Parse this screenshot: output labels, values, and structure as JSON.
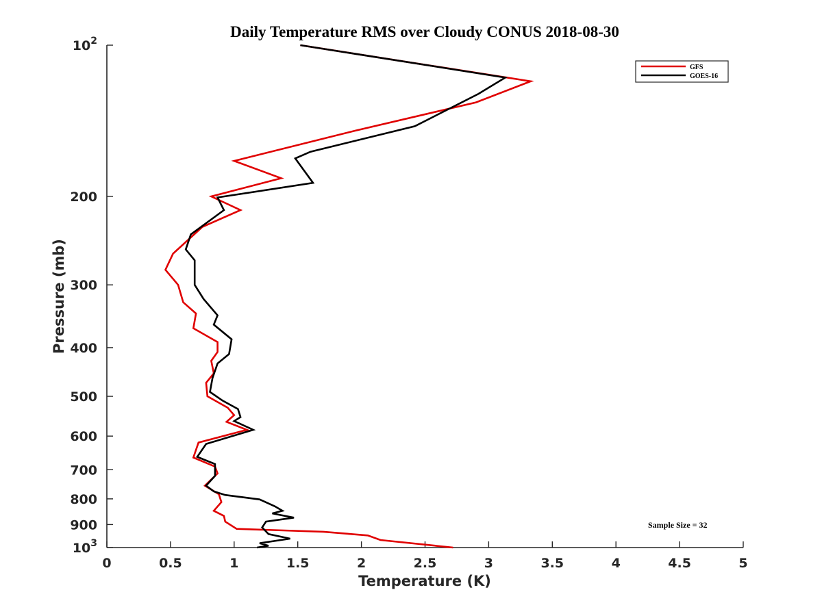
{
  "chart_data": {
    "type": "line",
    "title": "Daily Temperature RMS over Cloudy CONUS 2018-08-30",
    "xlabel": "Temperature (K)",
    "ylabel": "Pressure (mb)",
    "xlim": [
      0,
      5
    ],
    "ylim": [
      100,
      1000
    ],
    "y_scale": "log",
    "y_reversed": true,
    "grid": false,
    "legend_position": "top-right",
    "x_ticks": [
      0,
      0.5,
      1,
      1.5,
      2,
      2.5,
      3,
      3.5,
      4,
      4.5,
      5
    ],
    "x_tick_labels": [
      "0",
      "0.5",
      "1",
      "1.5",
      "2",
      "2.5",
      "3",
      "3.5",
      "4",
      "4.5",
      "5"
    ],
    "y_ticks": [
      100,
      200,
      300,
      400,
      500,
      600,
      700,
      800,
      900,
      1000
    ],
    "y_tick_labels": [
      {
        "base": "10",
        "exp": "2"
      },
      {
        "base": "200",
        "exp": ""
      },
      {
        "base": "300",
        "exp": ""
      },
      {
        "base": "400",
        "exp": ""
      },
      {
        "base": "500",
        "exp": ""
      },
      {
        "base": "600",
        "exp": ""
      },
      {
        "base": "700",
        "exp": ""
      },
      {
        "base": "800",
        "exp": ""
      },
      {
        "base": "900",
        "exp": ""
      },
      {
        "base": "10",
        "exp": "3"
      }
    ],
    "annotation": "Sample Size = 32",
    "series": [
      {
        "name": "GFS",
        "color": "#e00000",
        "points": [
          [
            1.52,
            100
          ],
          [
            3.33,
            118
          ],
          [
            2.9,
            130
          ],
          [
            1.95,
            148
          ],
          [
            1.0,
            170
          ],
          [
            1.37,
            184
          ],
          [
            0.82,
            200
          ],
          [
            1.05,
            213
          ],
          [
            0.75,
            230
          ],
          [
            0.52,
            260
          ],
          [
            0.46,
            280
          ],
          [
            0.56,
            300
          ],
          [
            0.6,
            325
          ],
          [
            0.7,
            342
          ],
          [
            0.68,
            366
          ],
          [
            0.87,
            390
          ],
          [
            0.87,
            408
          ],
          [
            0.82,
            425
          ],
          [
            0.84,
            450
          ],
          [
            0.78,
            470
          ],
          [
            0.79,
            500
          ],
          [
            0.95,
            527
          ],
          [
            1.0,
            545
          ],
          [
            0.94,
            562
          ],
          [
            1.1,
            583
          ],
          [
            0.72,
            618
          ],
          [
            0.68,
            662
          ],
          [
            0.85,
            690
          ],
          [
            0.87,
            712
          ],
          [
            0.77,
            753
          ],
          [
            0.88,
            783
          ],
          [
            0.9,
            812
          ],
          [
            0.84,
            845
          ],
          [
            0.92,
            865
          ],
          [
            0.93,
            888
          ],
          [
            1.02,
            918
          ],
          [
            1.7,
            930
          ],
          [
            2.05,
            946
          ],
          [
            2.15,
            966
          ],
          [
            2.72,
            1000
          ]
        ]
      },
      {
        "name": "GOES-16",
        "color": "#000000",
        "points": [
          [
            1.52,
            100
          ],
          [
            3.13,
            116
          ],
          [
            2.92,
            125
          ],
          [
            2.42,
            145
          ],
          [
            1.6,
            163
          ],
          [
            1.48,
            168
          ],
          [
            1.62,
            188
          ],
          [
            0.87,
            201
          ],
          [
            0.92,
            213
          ],
          [
            0.66,
            238
          ],
          [
            0.62,
            255
          ],
          [
            0.69,
            268
          ],
          [
            0.69,
            300
          ],
          [
            0.76,
            320
          ],
          [
            0.87,
            345
          ],
          [
            0.84,
            360
          ],
          [
            0.98,
            385
          ],
          [
            0.96,
            412
          ],
          [
            0.87,
            430
          ],
          [
            0.83,
            460
          ],
          [
            0.81,
            490
          ],
          [
            0.91,
            510
          ],
          [
            1.03,
            530
          ],
          [
            1.05,
            550
          ],
          [
            1.0,
            560
          ],
          [
            1.15,
            583
          ],
          [
            0.78,
            622
          ],
          [
            0.71,
            660
          ],
          [
            0.85,
            682
          ],
          [
            0.85,
            720
          ],
          [
            0.78,
            753
          ],
          [
            0.84,
            773
          ],
          [
            0.93,
            786
          ],
          [
            1.2,
            802
          ],
          [
            1.32,
            828
          ],
          [
            1.38,
            845
          ],
          [
            1.3,
            855
          ],
          [
            1.47,
            872
          ],
          [
            1.25,
            888
          ],
          [
            1.22,
            912
          ],
          [
            1.27,
            940
          ],
          [
            1.44,
            960
          ],
          [
            1.2,
            980
          ],
          [
            1.27,
            992
          ],
          [
            1.18,
            1000
          ]
        ]
      }
    ]
  }
}
